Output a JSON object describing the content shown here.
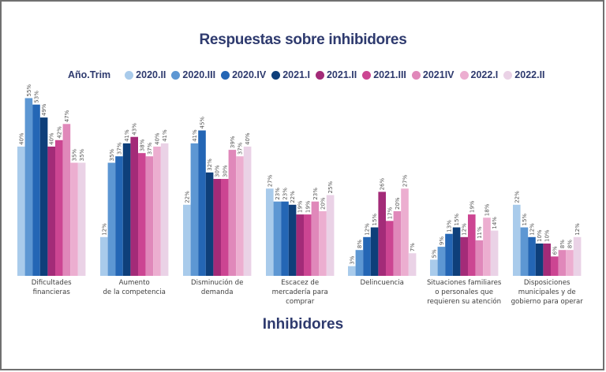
{
  "chart_data": {
    "type": "bar",
    "title": "Respuestas sobre inhibidores",
    "xlabel": "Inhibidores",
    "ylabel": "",
    "legend_title": "Año.Trim",
    "legend_position": "top",
    "value_suffix": "%",
    "ylim": [
      0,
      60
    ],
    "grid": false,
    "categories": [
      [
        "Dificultades",
        "financieras"
      ],
      [
        "Aumento",
        "de la competencia"
      ],
      [
        "Disminución de",
        "demanda"
      ],
      [
        "Escacez de",
        "mercadería para",
        "comprar"
      ],
      [
        "Delincuencia"
      ],
      [
        "Situaciones familiares",
        "o personales que",
        "requieren su atención"
      ],
      [
        "Disposiciones",
        "municipales y de",
        "gobierno para operar"
      ]
    ],
    "series": [
      {
        "name": "2020.II",
        "color": "#a9cbeb",
        "values": [
          40,
          12,
          22,
          27,
          3,
          5,
          22
        ]
      },
      {
        "name": "2020.III",
        "color": "#5d97d3",
        "values": [
          55,
          35,
          41,
          23,
          8,
          9,
          15
        ]
      },
      {
        "name": "2020.IV",
        "color": "#2466b5",
        "values": [
          53,
          37,
          45,
          23,
          12,
          13,
          12
        ]
      },
      {
        "name": "2021.I",
        "color": "#0e3f7a",
        "values": [
          49,
          41,
          32,
          22,
          15,
          15,
          10
        ]
      },
      {
        "name": "2021.II",
        "color": "#a32b78",
        "values": [
          40,
          43,
          30,
          19,
          26,
          12,
          10
        ]
      },
      {
        "name": "2021.III",
        "color": "#cc4592",
        "values": [
          42,
          38,
          30,
          19,
          17,
          19,
          6
        ]
      },
      {
        "name": "2021IV",
        "color": "#e088ba",
        "values": [
          47,
          37,
          39,
          23,
          20,
          11,
          8
        ]
      },
      {
        "name": "2022.I",
        "color": "#ecaed0",
        "values": [
          35,
          40,
          37,
          20,
          27,
          18,
          8
        ]
      },
      {
        "name": "2022.II",
        "color": "#ead2e6",
        "values": [
          35,
          41,
          40,
          25,
          7,
          14,
          12
        ]
      }
    ]
  }
}
